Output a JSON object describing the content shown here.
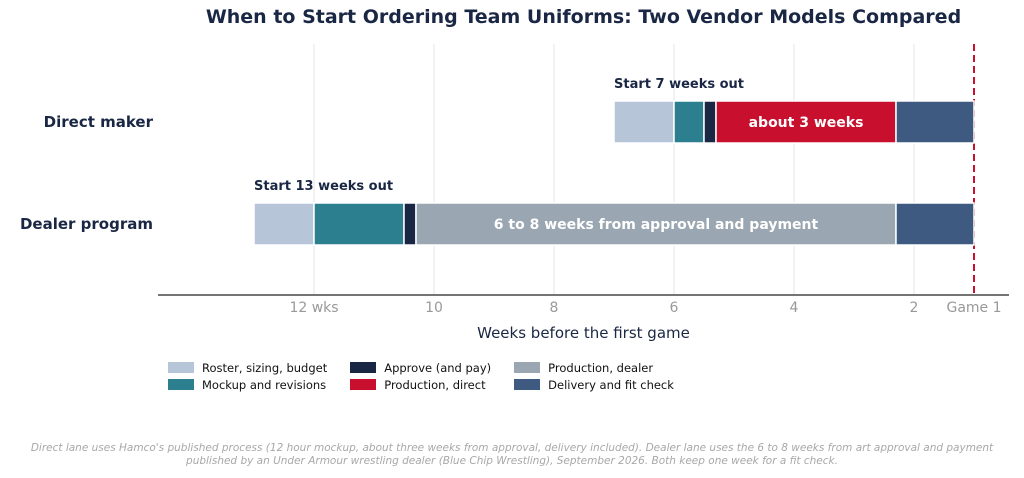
{
  "chart_data": {
    "type": "bar",
    "orientation": "horizontal-timeline",
    "title": "When to Start Ordering Team Uniforms: Two Vendor Models Compared",
    "xlabel": "Weeks before the first game",
    "xlim": [
      14.6,
      0.4
    ],
    "x_reversed": true,
    "x_ticks": [
      {
        "value": 12,
        "label": "12 wks"
      },
      {
        "value": 10,
        "label": "10"
      },
      {
        "value": 8,
        "label": "8"
      },
      {
        "value": 6,
        "label": "6"
      },
      {
        "value": 4,
        "label": "4"
      },
      {
        "value": 2,
        "label": "2"
      },
      {
        "value": 1,
        "label": "Game 1"
      }
    ],
    "reference_line": {
      "value": 1,
      "style": "dashed",
      "color": "#c8102e"
    },
    "grid": "vertical",
    "legend_position": "bottom-left",
    "phases": [
      {
        "key": "roster",
        "name": "Roster, sizing, budget",
        "color": "#b7c5d9"
      },
      {
        "key": "mockup",
        "name": "Mockup and revisions",
        "color": "#2b7f8f"
      },
      {
        "key": "approve",
        "name": "Approve (and pay)",
        "color": "#1a2744"
      },
      {
        "key": "prod_direct",
        "name": "Production, direct",
        "color": "#c8102e"
      },
      {
        "key": "prod_dealer",
        "name": "Production, dealer",
        "color": "#9aa6b2"
      },
      {
        "key": "delivery",
        "name": "Delivery and fit check",
        "color": "#3f5a80"
      }
    ],
    "lanes": [
      {
        "name": "Direct maker",
        "start_note": "Start 7 weeks out",
        "segments": [
          {
            "phase": "roster",
            "start": 7,
            "end": 6,
            "label": ""
          },
          {
            "phase": "mockup",
            "start": 6,
            "end": 5.5,
            "label": ""
          },
          {
            "phase": "approve",
            "start": 5.5,
            "end": 5.3,
            "label": ""
          },
          {
            "phase": "prod_direct",
            "start": 5.3,
            "end": 2.3,
            "label": "about 3 weeks"
          },
          {
            "phase": "delivery",
            "start": 2.3,
            "end": 1,
            "label": ""
          }
        ]
      },
      {
        "name": "Dealer program",
        "start_note": "Start 13 weeks out",
        "segments": [
          {
            "phase": "roster",
            "start": 13,
            "end": 12,
            "label": ""
          },
          {
            "phase": "mockup",
            "start": 12,
            "end": 10.5,
            "label": ""
          },
          {
            "phase": "approve",
            "start": 10.5,
            "end": 10.3,
            "label": ""
          },
          {
            "phase": "prod_dealer",
            "start": 10.3,
            "end": 2.3,
            "label": "6 to 8 weeks from approval and payment"
          },
          {
            "phase": "delivery",
            "start": 2.3,
            "end": 1,
            "label": ""
          }
        ]
      }
    ]
  },
  "footnote": {
    "line1": "Direct lane uses Hamco's published process (12 hour mockup, about three weeks from approval, delivery included). Dealer lane uses the 6 to 8 weeks from art approval and payment",
    "line2": "published by an Under Armour wrestling dealer (Blue Chip Wrestling), September 2026. Both keep one week for a fit check."
  }
}
